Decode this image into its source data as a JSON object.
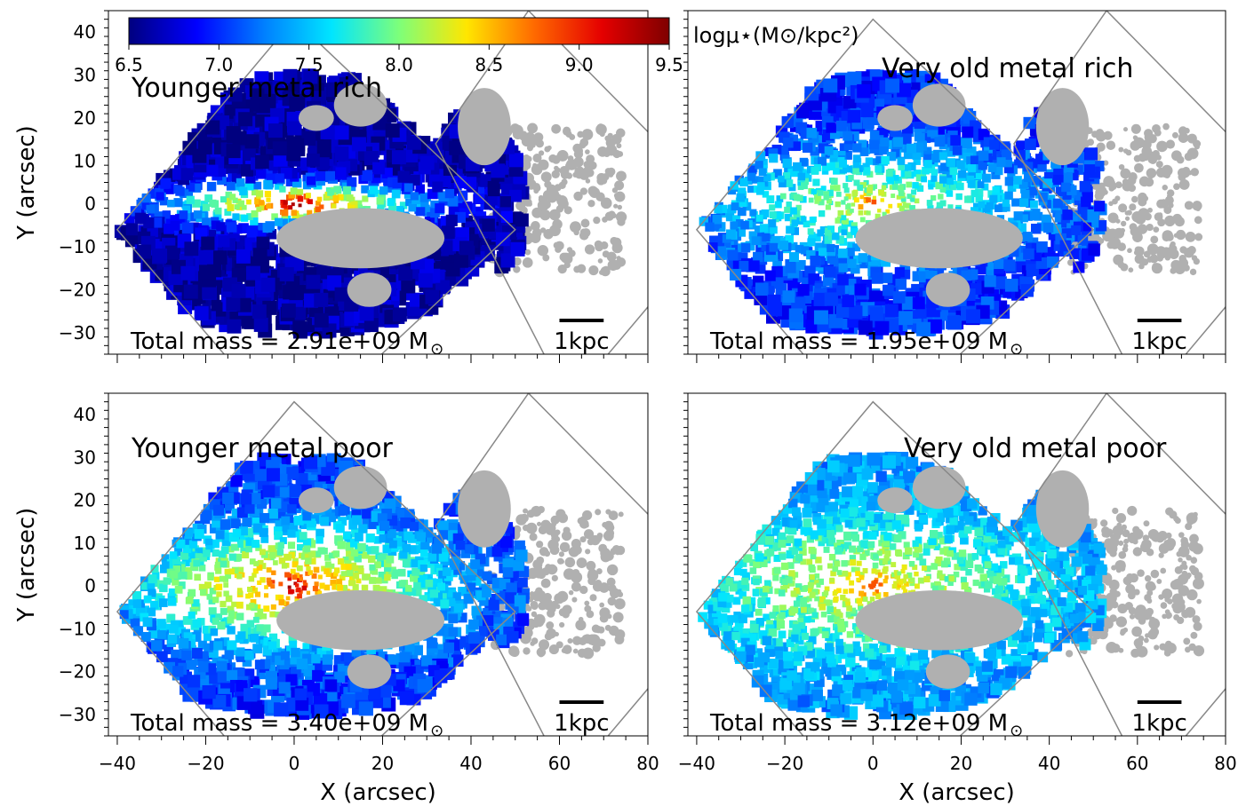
{
  "colorbar": {
    "label": "logμ⋆(M⊙/kpc²)",
    "ticks": [
      "6.5",
      "7.0",
      "7.5",
      "8.0",
      "8.5",
      "9.0",
      "9.5"
    ],
    "range": [
      6.5,
      9.5
    ],
    "colormap": "jet",
    "stops": [
      "#00007f",
      "#0000ff",
      "#007fff",
      "#00e5ff",
      "#7dff7a",
      "#ffe600",
      "#ff6a00",
      "#e50000",
      "#7f0000"
    ]
  },
  "axes": {
    "xlabel": "X (arcsec)",
    "ylabel": "Y (arcsec)",
    "xticks": [
      "−40",
      "−20",
      "0",
      "20",
      "40",
      "60",
      "80"
    ],
    "yticks": [
      "40",
      "30",
      "20",
      "10",
      "0",
      "−10",
      "−20",
      "−30"
    ]
  },
  "scalebar_label": "1kpc",
  "colors": {
    "masked": "#b0b0b0",
    "footprint_outline": "#888888"
  },
  "chart_data": [
    {
      "type": "heatmap",
      "title": "Younger metal rich",
      "total_mass_text": "Total mass = 2.91e+09 M",
      "total_mass": 2910000000.0,
      "total_mass_unit": "M⊙",
      "xlim": [
        -42,
        80
      ],
      "ylim": [
        -35,
        45
      ],
      "xlabel": "",
      "ylabel": "Y (arcsec)",
      "center_value": 9.3,
      "disk_value": 8.6,
      "halo_value": 6.6,
      "disk_scale_x": 28,
      "disk_scale_y": 6,
      "flatness": 6.0
    },
    {
      "type": "heatmap",
      "title": "Very old metal rich",
      "total_mass_text": "Total mass = 1.95e+09 M",
      "total_mass": 1950000000.0,
      "total_mass_unit": "M⊙",
      "xlim": [
        -42,
        80
      ],
      "ylim": [
        -35,
        45
      ],
      "xlabel": "",
      "ylabel": "",
      "center_value": 8.7,
      "disk_value": 8.0,
      "halo_value": 7.0,
      "disk_scale_x": 34,
      "disk_scale_y": 12,
      "flatness": 3.0
    },
    {
      "type": "heatmap",
      "title": "Younger metal poor",
      "total_mass_text": "Total mass = 3.40e+09 M",
      "total_mass": 3400000000.0,
      "total_mass_unit": "M⊙",
      "xlim": [
        -42,
        80
      ],
      "ylim": [
        -35,
        45
      ],
      "xlabel": "X (arcsec)",
      "ylabel": "Y (arcsec)",
      "center_value": 9.2,
      "disk_value": 8.5,
      "halo_value": 7.0,
      "disk_scale_x": 34,
      "disk_scale_y": 13,
      "flatness": 2.6
    },
    {
      "type": "heatmap",
      "title": "Very old metal poor",
      "total_mass_text": "Total mass = 3.12e+09 M",
      "total_mass": 3120000000.0,
      "total_mass_unit": "M⊙",
      "xlim": [
        -42,
        80
      ],
      "ylim": [
        -35,
        45
      ],
      "xlabel": "X (arcsec)",
      "ylabel": "",
      "center_value": 8.8,
      "disk_value": 8.2,
      "halo_value": 7.3,
      "disk_scale_x": 36,
      "disk_scale_y": 15,
      "flatness": 2.4
    }
  ]
}
